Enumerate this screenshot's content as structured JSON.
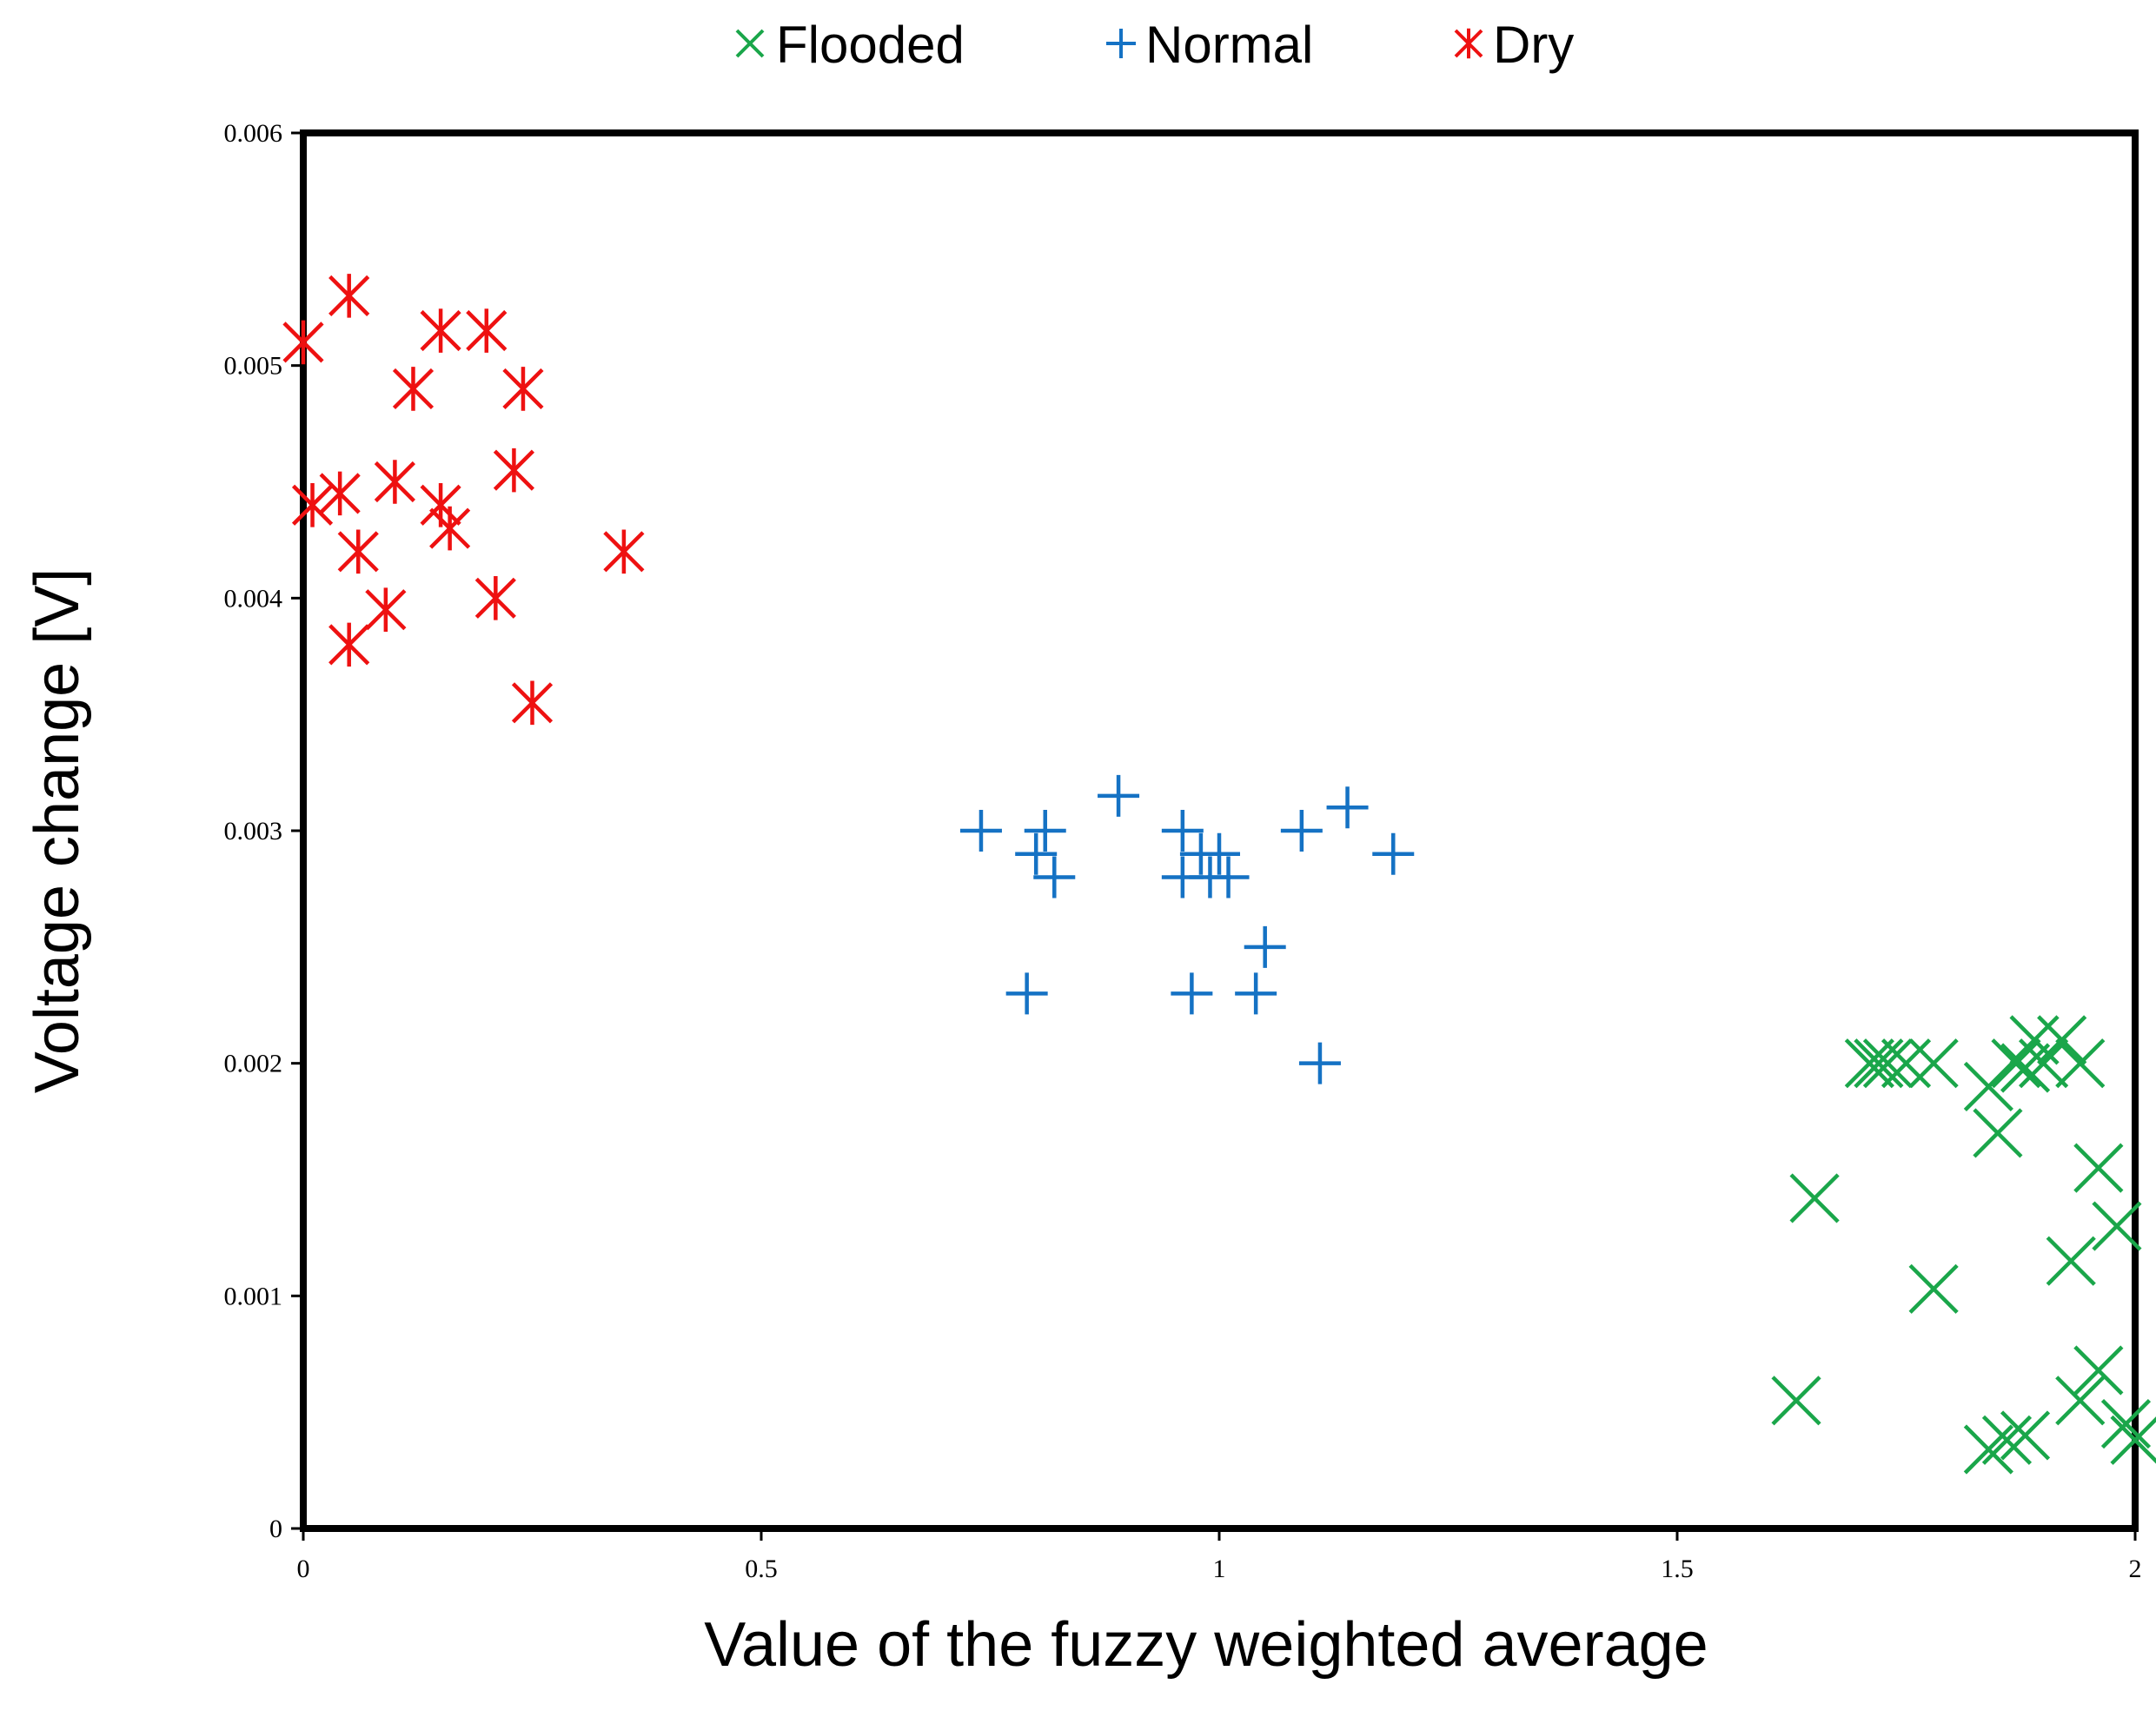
{
  "chart_data": {
    "type": "scatter",
    "title": "",
    "xlabel": "Value of the fuzzy weighted average",
    "ylabel": "Voltage change  [V]",
    "xlim": [
      0,
      2
    ],
    "ylim": [
      0,
      0.006
    ],
    "xticks": [
      "0",
      "0.5",
      "1",
      "1.5",
      "2"
    ],
    "yticks": [
      "0",
      "0.001",
      "0.002",
      "0.003",
      "0.004",
      "0.005",
      "0.006"
    ],
    "xtick_values": [
      0,
      0.5,
      1,
      1.5,
      2
    ],
    "ytick_values": [
      0,
      0.001,
      0.002,
      0.003,
      0.004,
      0.005,
      0.006
    ],
    "grid": false,
    "legend_position": "top-center",
    "series": [
      {
        "name": "Flooded",
        "marker": "x",
        "color": "#1aa64a",
        "points": [
          [
            1.63,
            0.00055
          ],
          [
            1.65,
            0.00142
          ],
          [
            1.71,
            0.002
          ],
          [
            1.72,
            0.002
          ],
          [
            1.73,
            0.002
          ],
          [
            1.75,
            0.002
          ],
          [
            1.78,
            0.002
          ],
          [
            1.78,
            0.00103
          ],
          [
            1.84,
            0.0019
          ],
          [
            1.85,
            0.0017
          ],
          [
            1.84,
            0.00034
          ],
          [
            1.86,
            0.00038
          ],
          [
            1.87,
            0.002
          ],
          [
            1.88,
            0.00198
          ],
          [
            1.88,
            0.0004
          ],
          [
            1.89,
            0.0021
          ],
          [
            1.9,
            0.002
          ],
          [
            1.92,
            0.0021
          ],
          [
            1.93,
            0.00115
          ],
          [
            1.94,
            0.002
          ],
          [
            1.94,
            0.00055
          ],
          [
            1.96,
            0.00068
          ],
          [
            1.96,
            0.00155
          ],
          [
            1.98,
            0.0013
          ],
          [
            1.99,
            0.00045
          ],
          [
            2.0,
            0.00038
          ]
        ]
      },
      {
        "name": "Normal",
        "marker": "+",
        "color": "#1572c4",
        "points": [
          [
            0.74,
            0.003
          ],
          [
            0.79,
            0.0023
          ],
          [
            0.8,
            0.0029
          ],
          [
            0.81,
            0.003
          ],
          [
            0.82,
            0.0028
          ],
          [
            0.89,
            0.00315
          ],
          [
            0.96,
            0.0028
          ],
          [
            0.96,
            0.003
          ],
          [
            0.97,
            0.0023
          ],
          [
            0.98,
            0.0029
          ],
          [
            0.99,
            0.0028
          ],
          [
            1.0,
            0.0029
          ],
          [
            1.01,
            0.0028
          ],
          [
            1.04,
            0.0023
          ],
          [
            1.05,
            0.0025
          ],
          [
            1.09,
            0.003
          ],
          [
            1.11,
            0.002
          ],
          [
            1.14,
            0.0031
          ],
          [
            1.19,
            0.0029
          ]
        ]
      },
      {
        "name": "Dry",
        "marker": "asterisk",
        "color": "#ee1111",
        "points": [
          [
            0.0,
            0.0051
          ],
          [
            0.01,
            0.0044
          ],
          [
            0.04,
            0.00445
          ],
          [
            0.05,
            0.0053
          ],
          [
            0.05,
            0.0038
          ],
          [
            0.06,
            0.0042
          ],
          [
            0.09,
            0.00395
          ],
          [
            0.1,
            0.0045
          ],
          [
            0.12,
            0.0049
          ],
          [
            0.15,
            0.00515
          ],
          [
            0.15,
            0.0044
          ],
          [
            0.16,
            0.0043
          ],
          [
            0.2,
            0.00515
          ],
          [
            0.21,
            0.004
          ],
          [
            0.23,
            0.00455
          ],
          [
            0.24,
            0.0049
          ],
          [
            0.25,
            0.00355
          ],
          [
            0.35,
            0.0042
          ]
        ]
      }
    ]
  }
}
